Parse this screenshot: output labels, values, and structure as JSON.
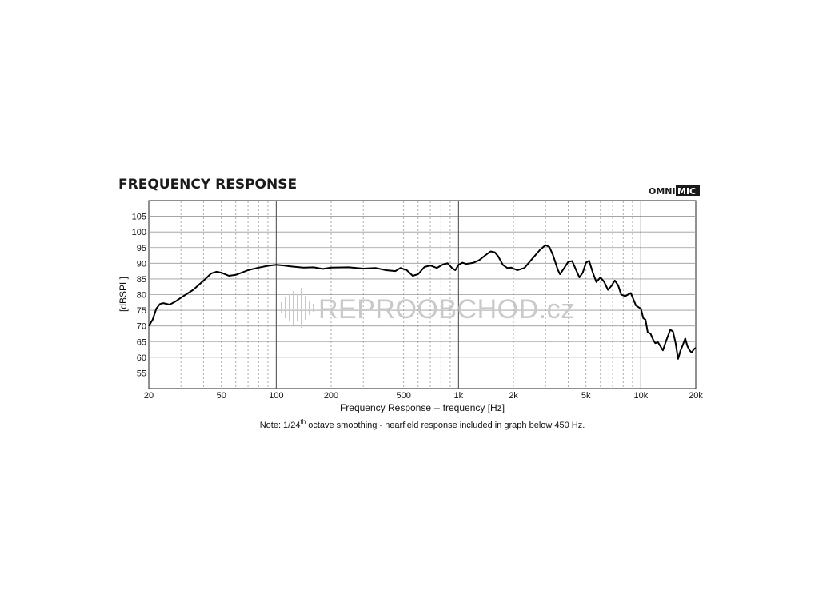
{
  "header": {
    "title": "FREQUENCY RESPONSE",
    "brand_left": "OMNI",
    "brand_right": "MIC"
  },
  "watermark": {
    "text": "REPROOBCHOD.cz"
  },
  "note": {
    "prefix": "Note: 1/24",
    "sup": "th",
    "suffix": " octave smoothing - nearfield response included in graph below 450 Hz."
  },
  "colors": {
    "curve": "#000000",
    "grid": "#9a9a9a",
    "decade_line": "#555555",
    "watermark": "#c9c9c9"
  },
  "chart_data": {
    "type": "line",
    "title": "FREQUENCY RESPONSE",
    "xlabel": "Frequency Response -- frequency [Hz]",
    "ylabel": "[dBSPL]",
    "x_scale": "log",
    "xlim": [
      20,
      20000
    ],
    "ylim": [
      50,
      110
    ],
    "grid": true,
    "x_ticks": [
      {
        "value": 20,
        "label": "20"
      },
      {
        "value": 50,
        "label": "50"
      },
      {
        "value": 100,
        "label": "100"
      },
      {
        "value": 200,
        "label": "200"
      },
      {
        "value": 500,
        "label": "500"
      },
      {
        "value": 1000,
        "label": "1k"
      },
      {
        "value": 2000,
        "label": "2k"
      },
      {
        "value": 5000,
        "label": "5k"
      },
      {
        "value": 10000,
        "label": "10k"
      },
      {
        "value": 20000,
        "label": "20k"
      }
    ],
    "y_ticks": [
      55,
      60,
      65,
      70,
      75,
      80,
      85,
      90,
      95,
      100,
      105
    ],
    "series": [
      {
        "points": [
          [
            20,
            70
          ],
          [
            21,
            72
          ],
          [
            22,
            75.5
          ],
          [
            23,
            77
          ],
          [
            24,
            77.3
          ],
          [
            26,
            76.8
          ],
          [
            28,
            77.8
          ],
          [
            30,
            79
          ],
          [
            35,
            81.5
          ],
          [
            40,
            84.5
          ],
          [
            44,
            86.8
          ],
          [
            47,
            87.3
          ],
          [
            50,
            87
          ],
          [
            55,
            86
          ],
          [
            60,
            86.3
          ],
          [
            70,
            87.8
          ],
          [
            80,
            88.6
          ],
          [
            90,
            89.2
          ],
          [
            100,
            89.5
          ],
          [
            110,
            89.3
          ],
          [
            120,
            89
          ],
          [
            140,
            88.6
          ],
          [
            160,
            88.7
          ],
          [
            180,
            88.2
          ],
          [
            200,
            88.6
          ],
          [
            250,
            88.7
          ],
          [
            300,
            88.3
          ],
          [
            350,
            88.5
          ],
          [
            400,
            87.8
          ],
          [
            450,
            87.5
          ],
          [
            480,
            88.5
          ],
          [
            520,
            87.8
          ],
          [
            560,
            86
          ],
          [
            600,
            86.5
          ],
          [
            650,
            88.8
          ],
          [
            700,
            89.3
          ],
          [
            760,
            88.5
          ],
          [
            820,
            89.6
          ],
          [
            870,
            90
          ],
          [
            920,
            88.5
          ],
          [
            960,
            87.8
          ],
          [
            1000,
            89.5
          ],
          [
            1050,
            90.2
          ],
          [
            1100,
            89.8
          ],
          [
            1200,
            90.1
          ],
          [
            1300,
            91
          ],
          [
            1400,
            92.5
          ],
          [
            1500,
            93.8
          ],
          [
            1580,
            93.5
          ],
          [
            1650,
            92.2
          ],
          [
            1750,
            89.5
          ],
          [
            1850,
            88.5
          ],
          [
            1950,
            88.6
          ],
          [
            2100,
            87.8
          ],
          [
            2300,
            88.5
          ],
          [
            2500,
            91
          ],
          [
            2800,
            94.3
          ],
          [
            3000,
            95.8
          ],
          [
            3150,
            95.2
          ],
          [
            3300,
            92.5
          ],
          [
            3500,
            88
          ],
          [
            3600,
            86.5
          ],
          [
            3800,
            88.5
          ],
          [
            4000,
            90.5
          ],
          [
            4200,
            90.7
          ],
          [
            4400,
            88
          ],
          [
            4600,
            85.5
          ],
          [
            4800,
            87
          ],
          [
            5000,
            90.2
          ],
          [
            5200,
            90.8
          ],
          [
            5450,
            87
          ],
          [
            5700,
            84
          ],
          [
            6000,
            85.5
          ],
          [
            6300,
            84
          ],
          [
            6600,
            81.5
          ],
          [
            6900,
            82.8
          ],
          [
            7200,
            84.5
          ],
          [
            7500,
            83
          ],
          [
            7800,
            80
          ],
          [
            8200,
            79.5
          ],
          [
            8800,
            80.5
          ],
          [
            9100,
            78.5
          ],
          [
            9400,
            76.5
          ],
          [
            9700,
            76
          ],
          [
            10000,
            75.5
          ],
          [
            10300,
            72.5
          ],
          [
            10600,
            72
          ],
          [
            10900,
            68
          ],
          [
            11300,
            67.5
          ],
          [
            11700,
            65.5
          ],
          [
            12000,
            64.5
          ],
          [
            12400,
            64.8
          ],
          [
            12800,
            63.5
          ],
          [
            13200,
            62.2
          ],
          [
            13800,
            65.5
          ],
          [
            14500,
            68.8
          ],
          [
            15000,
            68.2
          ],
          [
            15500,
            64.5
          ],
          [
            16000,
            59.5
          ],
          [
            16500,
            62.2
          ],
          [
            17000,
            64
          ],
          [
            17500,
            66
          ],
          [
            18000,
            63.5
          ],
          [
            18500,
            62.2
          ],
          [
            19000,
            61.5
          ],
          [
            19500,
            62.5
          ],
          [
            20000,
            63
          ]
        ]
      }
    ]
  }
}
